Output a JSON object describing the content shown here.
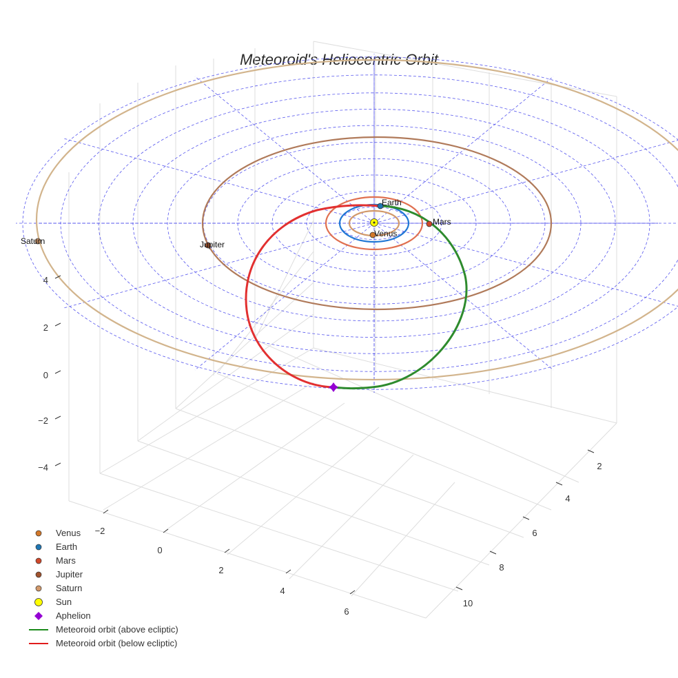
{
  "chart_data": {
    "type": "scatter3d",
    "title": "Meteoroid's Heliocentric Orbit",
    "axes": {
      "x": {
        "ticks": [
          -2,
          0,
          2,
          4,
          6
        ]
      },
      "y": {
        "ticks": [
          2,
          4,
          6,
          8,
          10
        ]
      },
      "z": {
        "ticks": [
          -4,
          -2,
          0,
          2,
          4
        ]
      }
    },
    "planets": [
      {
        "name": "Venus",
        "orbit_radius_au": 0.72,
        "color": "#d2782a"
      },
      {
        "name": "Earth",
        "orbit_radius_au": 1.0,
        "color": "#1f77b4"
      },
      {
        "name": "Mars",
        "orbit_radius_au": 1.52,
        "color": "#d0482a"
      },
      {
        "name": "Jupiter",
        "orbit_radius_au": 5.2,
        "color": "#a0522d"
      },
      {
        "name": "Saturn",
        "orbit_radius_au": 9.5,
        "color": "#d2b48c"
      }
    ],
    "sun": {
      "name": "Sun",
      "color": "#ffff00"
    },
    "aphelion": {
      "name": "Aphelion",
      "color": "#9400d3"
    },
    "orbit_segments": [
      {
        "name": "Meteoroid orbit (above ecliptic)",
        "color": "#2e8b2e"
      },
      {
        "name": "Meteoroid orbit (below ecliptic)",
        "color": "#e23030"
      }
    ],
    "legend": [
      {
        "label": "Venus",
        "kind": "dot",
        "color": "#d2782a"
      },
      {
        "label": "Earth",
        "kind": "dot",
        "color": "#1f77b4"
      },
      {
        "label": "Mars",
        "kind": "dot",
        "color": "#d0482a"
      },
      {
        "label": "Jupiter",
        "kind": "dot",
        "color": "#a0522d"
      },
      {
        "label": "Saturn",
        "kind": "dot",
        "color": "#d2996b"
      },
      {
        "label": "Sun",
        "kind": "sun",
        "color": "#ffff00"
      },
      {
        "label": "Aphelion",
        "kind": "diamond",
        "color": "#9400d3"
      },
      {
        "label": "Meteoroid orbit (above ecliptic)",
        "kind": "line",
        "color": "#1a8a1a"
      },
      {
        "label": "Meteoroid orbit (below ecliptic)",
        "kind": "line",
        "color": "#e01b1b"
      }
    ],
    "legend_position": "bottom-left",
    "grid": true
  }
}
